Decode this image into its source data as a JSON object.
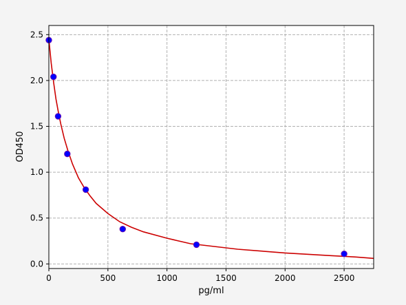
{
  "chart_data": {
    "type": "scatter",
    "title": "",
    "xlabel": "pg/ml",
    "ylabel": "OD450",
    "xlim": [
      0,
      2750
    ],
    "ylim": [
      -0.05,
      2.6
    ],
    "xticks": [
      0,
      500,
      1000,
      1500,
      2000,
      2500
    ],
    "yticks": [
      0.0,
      0.5,
      1.0,
      1.5,
      2.0,
      2.5
    ],
    "xtick_labels": [
      "0",
      "500",
      "1000",
      "1500",
      "2000",
      "2500"
    ],
    "ytick_labels": [
      "0.0",
      "0.5",
      "1.0",
      "1.5",
      "2.0",
      "2.5"
    ],
    "grid": true,
    "grid_style": "dashed",
    "series": [
      {
        "kind": "points",
        "color": "#0000ff",
        "edge_color": "#6a0dad",
        "x": [
          0,
          39,
          78,
          156,
          312,
          625,
          1250,
          2500
        ],
        "y": [
          2.44,
          2.04,
          1.61,
          1.2,
          0.81,
          0.38,
          0.21,
          0.11
        ]
      },
      {
        "kind": "fitted-curve",
        "color": "#cc0000",
        "x": [
          0,
          20,
          40,
          60,
          80,
          100,
          130,
          160,
          200,
          250,
          300,
          350,
          400,
          500,
          600,
          700,
          800,
          1000,
          1200,
          1400,
          1600,
          1800,
          2000,
          2200,
          2400,
          2600,
          2750
        ],
        "y": [
          2.45,
          2.19,
          1.98,
          1.8,
          1.66,
          1.53,
          1.37,
          1.24,
          1.09,
          0.94,
          0.83,
          0.74,
          0.66,
          0.55,
          0.46,
          0.4,
          0.35,
          0.28,
          0.22,
          0.19,
          0.16,
          0.14,
          0.12,
          0.105,
          0.09,
          0.075,
          0.06
        ]
      }
    ]
  }
}
